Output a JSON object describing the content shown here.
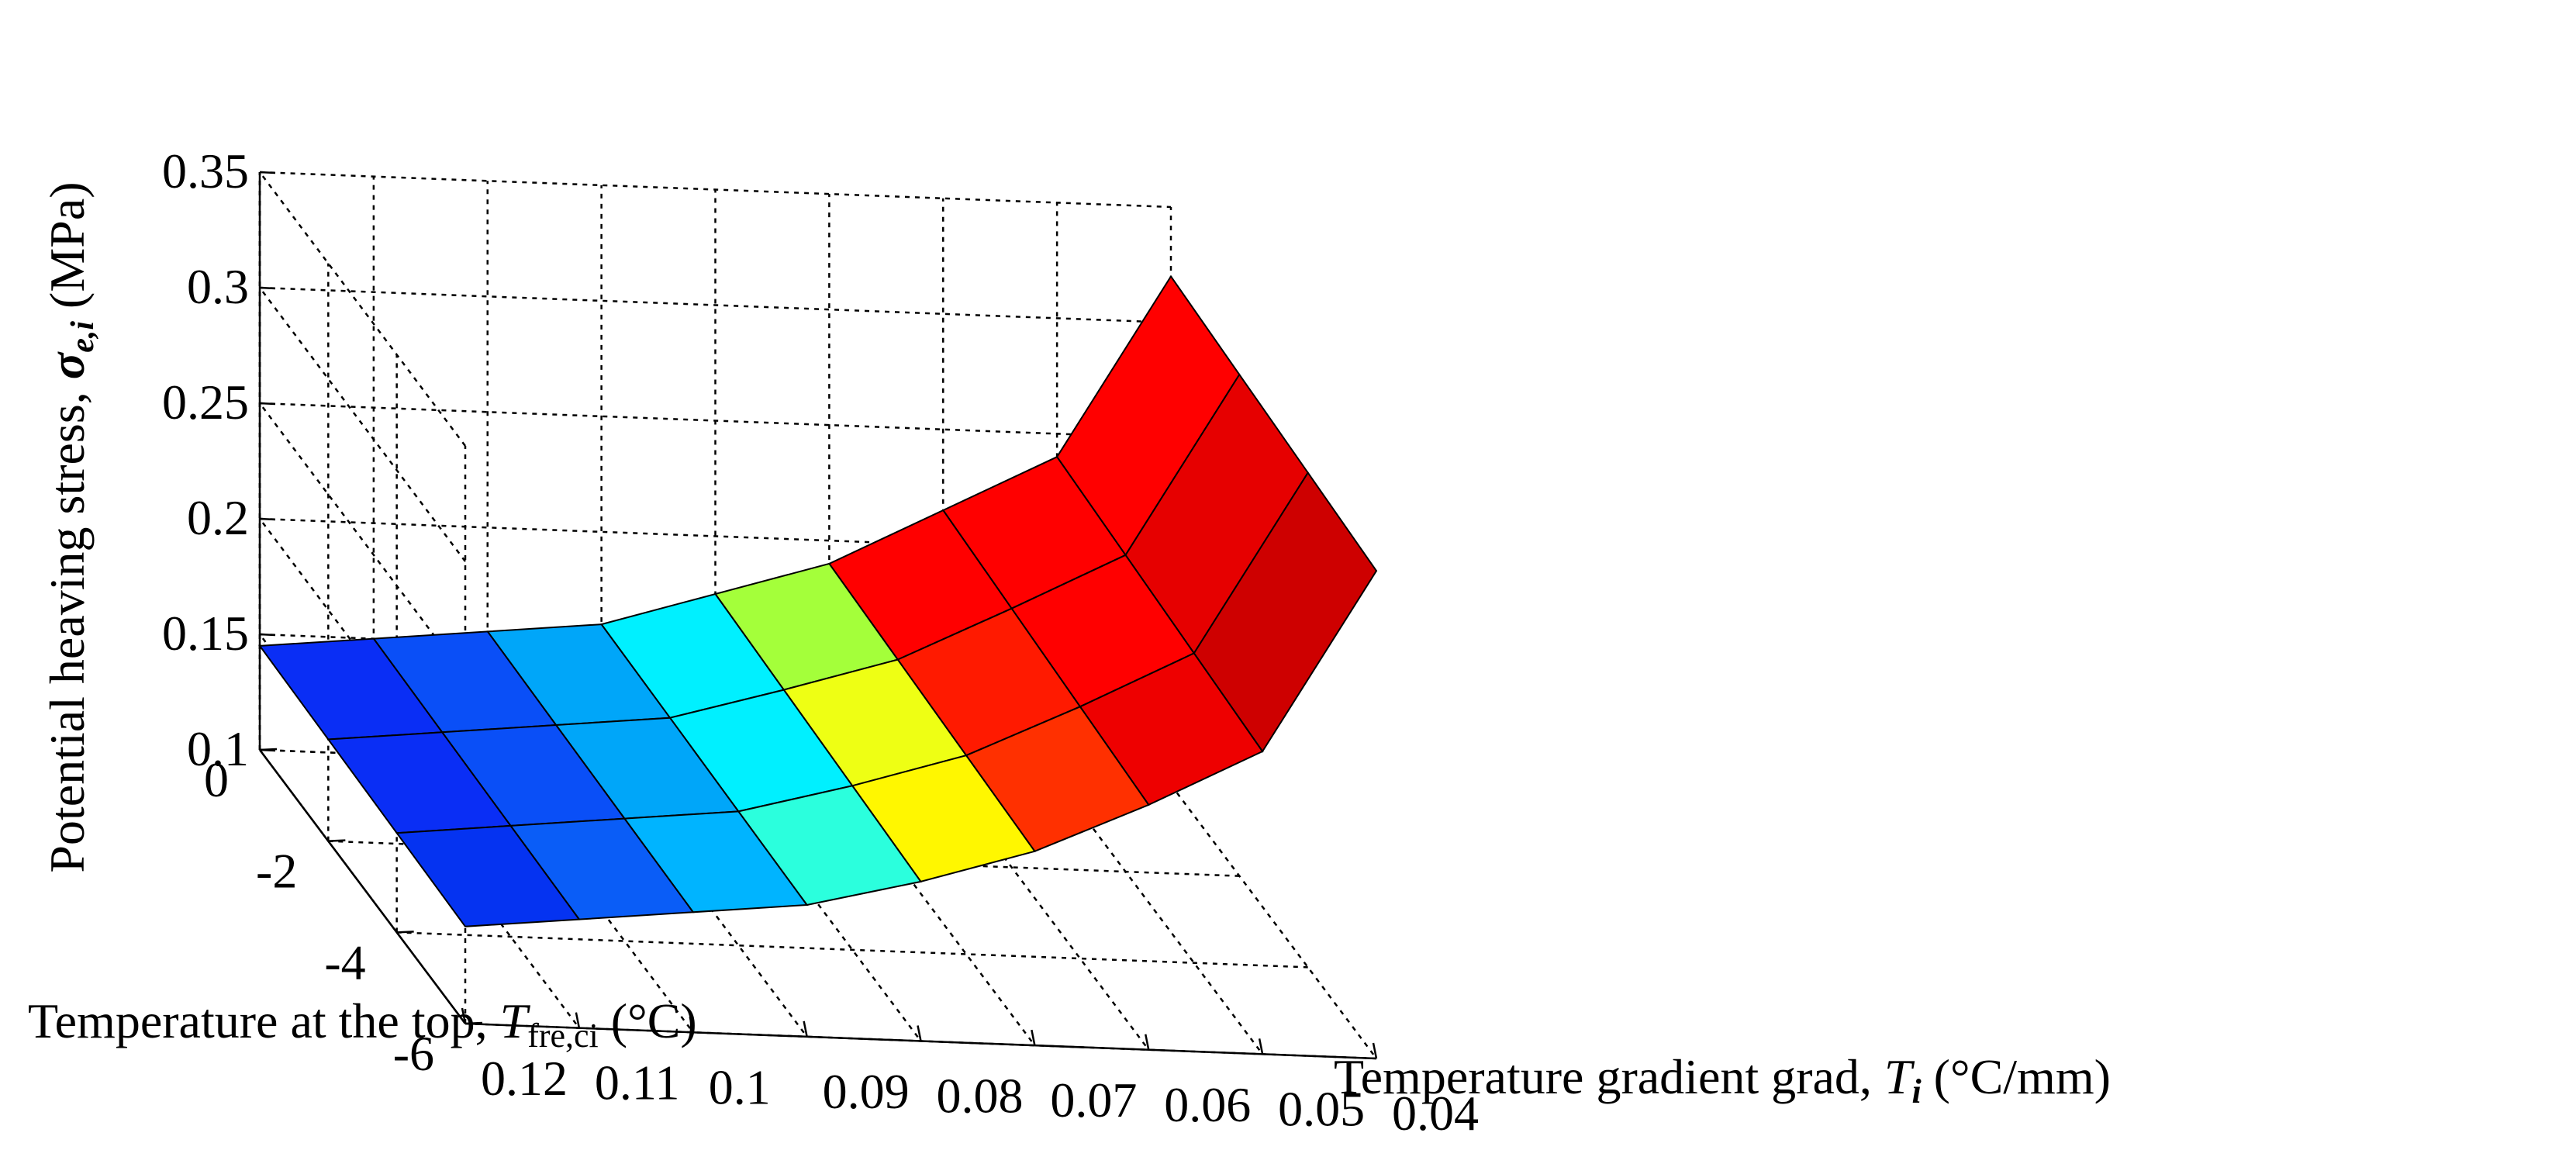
{
  "chart_data": {
    "type": "surface",
    "title": "",
    "x_axis": {
      "label_main": "Temperature gradient grad, ",
      "label_italic": "T",
      "label_sub": "i",
      "label_unit": " (°C/mm)",
      "values": [
        0.12,
        0.11,
        0.1,
        0.09,
        0.08,
        0.07,
        0.06,
        0.05,
        0.04
      ],
      "tick_labels": [
        "0.12",
        "0.11",
        "0.1",
        "0.09",
        "0.08",
        "0.07",
        "0.06",
        "0.05",
        "0.04"
      ]
    },
    "y_axis": {
      "label_main": "Temperature at the top, ",
      "label_italic": "T",
      "label_sub": "fre,ci",
      "label_unit": " (°C)",
      "values": [
        0,
        -2,
        -4,
        -6
      ],
      "tick_labels": [
        "0",
        "-2",
        "-4",
        "-6"
      ]
    },
    "z_axis": {
      "label_main": "Potential heaving stress, ",
      "label_sigma": "σ",
      "label_sub": "e,i",
      "label_unit": " (MPa)",
      "range": [
        0.1,
        0.35
      ],
      "ticks": [
        0.1,
        0.15,
        0.2,
        0.25,
        0.3,
        0.35
      ],
      "tick_labels": [
        "0.1",
        "0.15",
        "0.2",
        "0.25",
        "0.3",
        "0.35"
      ]
    },
    "grid": true,
    "colormap": "jet",
    "colors": {
      "jet_low": "#00008f",
      "jet_high": "#800000"
    },
    "z_values": [
      [
        0.145,
        0.15,
        0.155,
        0.16,
        0.175,
        0.19,
        0.215,
        0.24,
        0.32
      ],
      [
        0.144,
        0.149,
        0.154,
        0.159,
        0.173,
        0.188,
        0.212,
        0.237,
        0.317
      ],
      [
        0.143,
        0.148,
        0.153,
        0.158,
        0.171,
        0.186,
        0.209,
        0.234,
        0.314
      ],
      [
        0.142,
        0.147,
        0.152,
        0.157,
        0.169,
        0.184,
        0.206,
        0.231,
        0.311
      ]
    ],
    "face_colors": [
      [
        "#0a2ef5",
        "#0a4ff7",
        "#00a6f9",
        "#00f0ff",
        "#a4ff3a",
        "#ff0000",
        "#ff0000",
        "#ff0000"
      ],
      [
        "#0a2ef5",
        "#0a4ff7",
        "#00a6f9",
        "#00f0ff",
        "#eeff14",
        "#ff1a00",
        "#ff0000",
        "#e60000"
      ],
      [
        "#0533f1",
        "#0a5df7",
        "#00b4ff",
        "#2bffdd",
        "#fff700",
        "#ff3000",
        "#ee0000",
        "#ce0000"
      ],
      [
        "#0545f1",
        "#0a6cf7",
        "#00c6ff",
        "#3dffd0",
        "#ffd800",
        "#ffb800",
        "#d50000",
        "#900000"
      ]
    ]
  }
}
